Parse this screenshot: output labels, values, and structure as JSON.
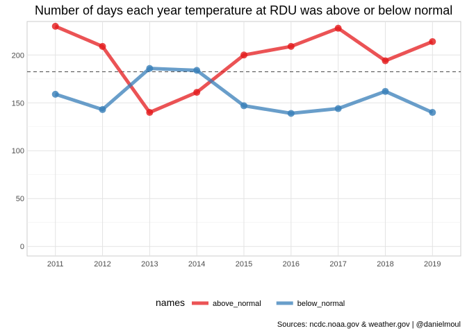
{
  "chart_data": {
    "type": "line",
    "title": "Number of days each year temperature at RDU was above or below normal",
    "xlabel": "",
    "ylabel": "",
    "x": [
      2011,
      2012,
      2013,
      2014,
      2015,
      2016,
      2017,
      2018,
      2019
    ],
    "x_tick_labels": [
      "2011",
      "2012",
      "2013",
      "2014",
      "2015",
      "2016",
      "2017",
      "2018",
      "2019"
    ],
    "ylim": [
      -10,
      235
    ],
    "y_ticks": [
      0,
      50,
      100,
      150,
      200
    ],
    "y_tick_labels": [
      "0",
      "50",
      "100",
      "150",
      "200"
    ],
    "series": [
      {
        "name": "above_normal",
        "color": "#e41a1c",
        "values": [
          230,
          209,
          140,
          161,
          200,
          209,
          228,
          194,
          214
        ]
      },
      {
        "name": "below_normal",
        "color": "#377eb8",
        "values": [
          159,
          143,
          186,
          184,
          147,
          139,
          144,
          162,
          140
        ]
      }
    ],
    "reference_line": {
      "y": 182.5,
      "style": "dashed",
      "color": "#555555"
    },
    "grid": true,
    "legend": {
      "title": "names",
      "position": "bottom"
    },
    "caption": "Sources: ncdc.noaa.gov & weather.gov | @danielmoul"
  }
}
